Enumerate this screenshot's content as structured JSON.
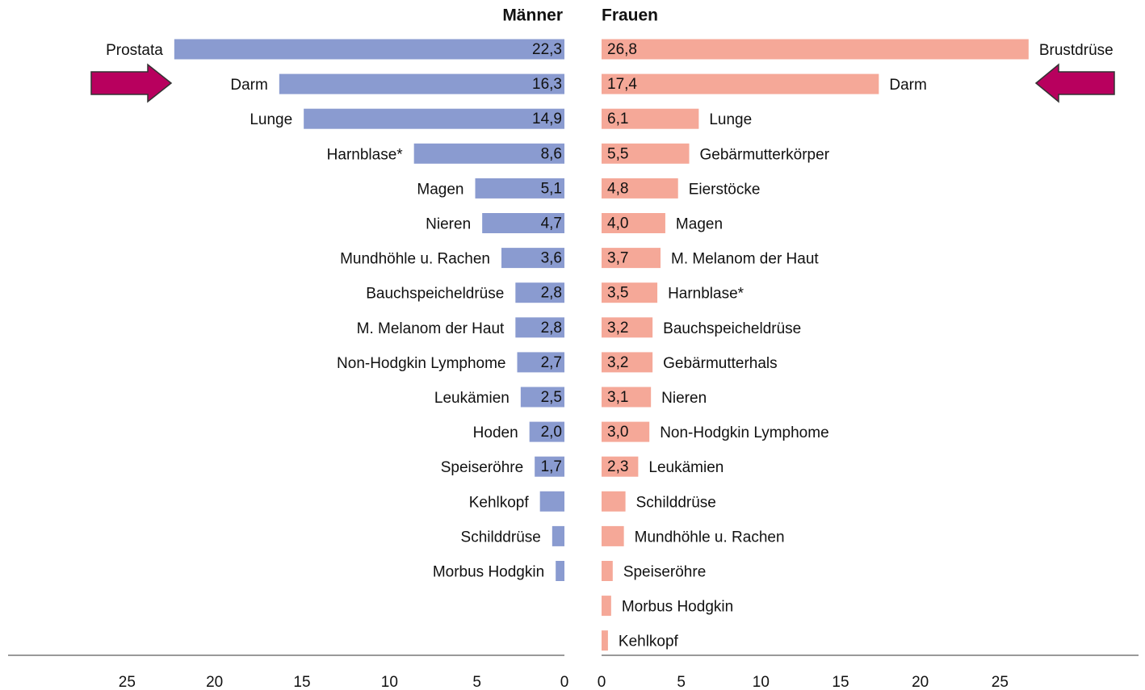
{
  "chart_data": [
    {
      "type": "bar",
      "orientation": "horizontal",
      "x_inverted": true,
      "title": "Männer",
      "color": "#8a9bd0",
      "categories": [
        "Prostata",
        "Darm",
        "Lunge",
        "Harnblase*",
        "Magen",
        "Nieren",
        "Mundhöhle u. Rachen",
        "Bauchspeicheldrüse",
        "M. Melanom der Haut",
        "Non-Hodgkin Lymphome",
        "Leukämien",
        "Hoden",
        "Speiseröhre",
        "Kehlkopf",
        "Schilddrüse",
        "Morbus Hodgkin"
      ],
      "values": [
        22.3,
        16.3,
        14.9,
        8.6,
        5.1,
        4.7,
        3.6,
        2.8,
        2.8,
        2.7,
        2.5,
        2.0,
        1.7,
        1.4,
        0.7,
        0.5
      ],
      "value_labels": [
        "22,3",
        "16,3",
        "14,9",
        "8,6",
        "5,1",
        "4,7",
        "3,6",
        "2,8",
        "2,8",
        "2,7",
        "2,5",
        "2,0",
        "1,7",
        null,
        null,
        null
      ],
      "xlim": [
        0,
        31.8
      ],
      "xticks": [
        0,
        5,
        10,
        15,
        20,
        25
      ]
    },
    {
      "type": "bar",
      "orientation": "horizontal",
      "x_inverted": false,
      "title": "Frauen",
      "color": "#f5a898",
      "categories": [
        "Brustdrüse",
        "Darm",
        "Lunge",
        "Gebärmutterkörper",
        "Eierstöcke",
        "Magen",
        "M. Melanom der Haut",
        "Harnblase*",
        "Bauchspeicheldrüse",
        "Gebärmutterhals",
        "Nieren",
        "Non-Hodgkin Lymphome",
        "Leukämien",
        "Schilddrüse",
        "Mundhöhle u. Rachen",
        "Speiseröhre",
        "Morbus Hodgkin",
        "Kehlkopf"
      ],
      "values": [
        26.8,
        17.4,
        6.1,
        5.5,
        4.8,
        4.0,
        3.7,
        3.5,
        3.2,
        3.2,
        3.1,
        3.0,
        2.3,
        1.5,
        1.4,
        0.7,
        0.6,
        0.4
      ],
      "value_labels": [
        "26,8",
        "17,4",
        "6,1",
        "5,5",
        "4,8",
        "4,0",
        "3,7",
        "3,5",
        "3,2",
        "3,2",
        "3,1",
        "3,0",
        "2,3",
        null,
        null,
        null,
        null,
        null
      ],
      "xlim": [
        0,
        33.7
      ],
      "xticks": [
        0,
        5,
        10,
        15,
        20,
        25
      ]
    }
  ]
}
